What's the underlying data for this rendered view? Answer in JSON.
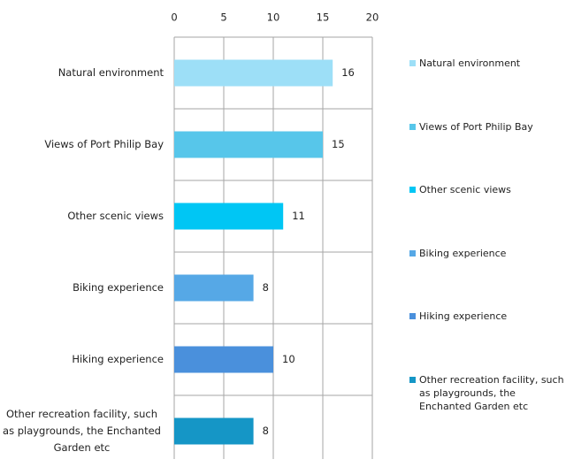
{
  "chart_data": {
    "type": "bar",
    "orientation": "horizontal",
    "categories": [
      "Natural environment",
      "Views of Port Philip Bay",
      "Other scenic views",
      "Biking experience",
      "Hiking experience",
      "Other recreation facility, such as playgrounds, the Enchanted Garden etc"
    ],
    "values": [
      16,
      15,
      11,
      8,
      10,
      8
    ],
    "colors": [
      "#9ddff7",
      "#57c6ea",
      "#00c6f4",
      "#56a8e6",
      "#4a90dc",
      "#1596c6"
    ],
    "xlim": [
      0,
      20
    ],
    "xticks": [
      0,
      5,
      10,
      15,
      20
    ],
    "grid": true,
    "legend": "right"
  }
}
